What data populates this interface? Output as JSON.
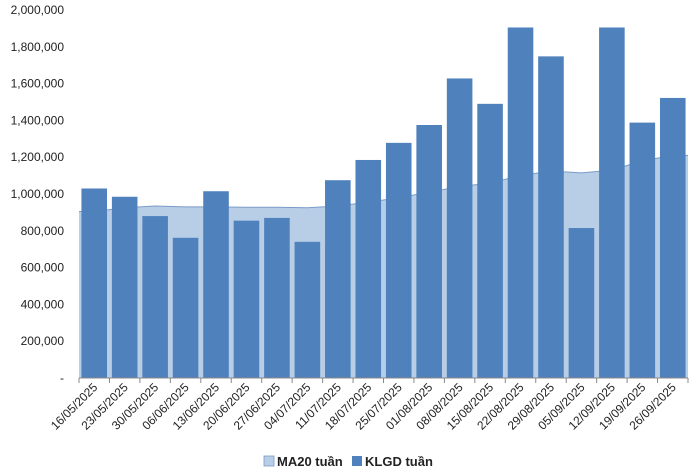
{
  "chart_data": {
    "type": "bar",
    "categories": [
      "16/05/2025",
      "23/05/2025",
      "30/05/2025",
      "06/06/2025",
      "13/06/2025",
      "20/06/2025",
      "27/06/2025",
      "04/07/2025",
      "11/07/2025",
      "18/07/2025",
      "25/07/2025",
      "01/08/2025",
      "08/08/2025",
      "15/08/2025",
      "22/08/2025",
      "29/08/2025",
      "05/09/2025",
      "12/09/2025",
      "19/09/2025",
      "26/09/2025"
    ],
    "series": [
      {
        "name": "MA20 tuần",
        "kind": "area",
        "color": "#b8cde6",
        "edge_color": "#7c9cc8",
        "values": [
          905000,
          925000,
          935000,
          930000,
          930000,
          928000,
          928000,
          925000,
          935000,
          955000,
          980000,
          1010000,
          1040000,
          1060000,
          1100000,
          1125000,
          1115000,
          1130000,
          1180000,
          1210000
        ]
      },
      {
        "name": "KLGD tuần",
        "kind": "bar",
        "color": "#4f81bd",
        "values": [
          1030000,
          985000,
          880000,
          762000,
          1015000,
          855000,
          870000,
          740000,
          1075000,
          1185000,
          1278000,
          1375000,
          1628000,
          1490000,
          1905000,
          1748000,
          815000,
          1905000,
          1388000,
          1522000
        ]
      }
    ],
    "y_ticks": [
      "-",
      "200,000",
      "400,000",
      "600,000",
      "800,000",
      "1,000,000",
      "1,200,000",
      "1,400,000",
      "1,600,000",
      "1,800,000",
      "2,000,000"
    ],
    "ylim": [
      0,
      2000000
    ],
    "grid": false,
    "legend": "bottom"
  }
}
